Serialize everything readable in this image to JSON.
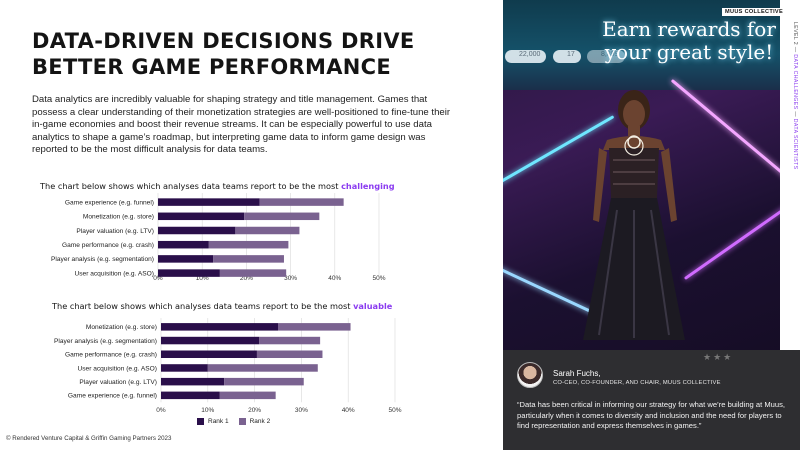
{
  "title": "DATA-DRIVEN DECISIONS DRIVE BETTER GAME PERFORMANCE",
  "body": "Data analytics are incredibly valuable for shaping strategy and title management. Games that possess a clear understanding of their monetization strategies are well-positioned to fine-tune their in-game economies and boost their revenue streams. It can be especially powerful to use data analytics to shape a game’s roadmap, but interpreting game data to inform game design was reported to be the most difficult analysis for data teams.",
  "chart1_heading": {
    "prefix": "The chart below shows which analyses data teams report to be the most ",
    "accent": "challenging"
  },
  "chart2_heading": {
    "prefix": "The chart below shows which analyses data teams report to be the most ",
    "accent": "valuable"
  },
  "legend": {
    "rank1": "Rank 1",
    "rank2": "Rank 2"
  },
  "colors": {
    "rank1": "#2a0f4a",
    "rank2": "#7a6290",
    "accent": "#8b3cf0"
  },
  "footer": "© Rendered Venture Capital & Griffin Gaming Partners 2023",
  "chart_data": [
    {
      "type": "bar",
      "orientation": "horizontal-stacked",
      "title": "The chart below shows which analyses data teams report to be the most challenging",
      "categories": [
        "Game experience (e.g. funnel)",
        "Monetization (e.g. store)",
        "Player valuation (e.g. LTV)",
        "Game performance (e.g. crash)",
        "Player analysis (e.g. segmentation)",
        "User acquisition (e.g. ASO)"
      ],
      "series": [
        {
          "name": "Rank 1",
          "values": [
            23,
            19.5,
            17.5,
            11.5,
            12.5,
            14
          ]
        },
        {
          "name": "Rank 2",
          "values": [
            19,
            17,
            14.5,
            18,
            16,
            15
          ]
        }
      ],
      "xticks": [
        "0%",
        "10%",
        "20%",
        "30%",
        "40%",
        "50%"
      ],
      "xlim": [
        0,
        50
      ],
      "grid": true
    },
    {
      "type": "bar",
      "orientation": "horizontal-stacked",
      "title": "The chart below shows which analyses data teams report to be the most valuable",
      "categories": [
        "Monetization (e.g. store)",
        "Player analysis (e.g. segmentation)",
        "Game performance (e.g. crash)",
        "User acquisition (e.g. ASO)",
        "Player valuation (e.g. LTV)",
        "Game experience (e.g. funnel)"
      ],
      "series": [
        {
          "name": "Rank 1",
          "values": [
            25,
            21,
            20.5,
            10,
            13.5,
            12.5
          ]
        },
        {
          "name": "Rank 2",
          "values": [
            15.5,
            13,
            14,
            23.5,
            17,
            12
          ]
        }
      ],
      "xticks": [
        "0%",
        "10%",
        "20%",
        "30%",
        "40%",
        "50%"
      ],
      "xlim": [
        0,
        50
      ],
      "grid": true
    }
  ],
  "sidebar": {
    "brand": "MUUS COLLECTIVE",
    "vertical": [
      "LEVEL 2",
      "DATA CHALLENGES",
      "DATA SCIENTISTS"
    ],
    "game_banner": "Earn rewards for your great style!",
    "stats": [
      "22,000",
      "17",
      "8,899"
    ],
    "quote_name": "Sarah Fuchs,",
    "quote_role": "CO-CEO, CO-FOUNDER, AND CHAIR, MUUS COLLECTIVE",
    "quote_text": "“Data has been critical in informing our strategy for what we’re building at Muus, particularly when it comes to diversity and inclusion and the need for players to find representation and express themselves in games.”"
  }
}
